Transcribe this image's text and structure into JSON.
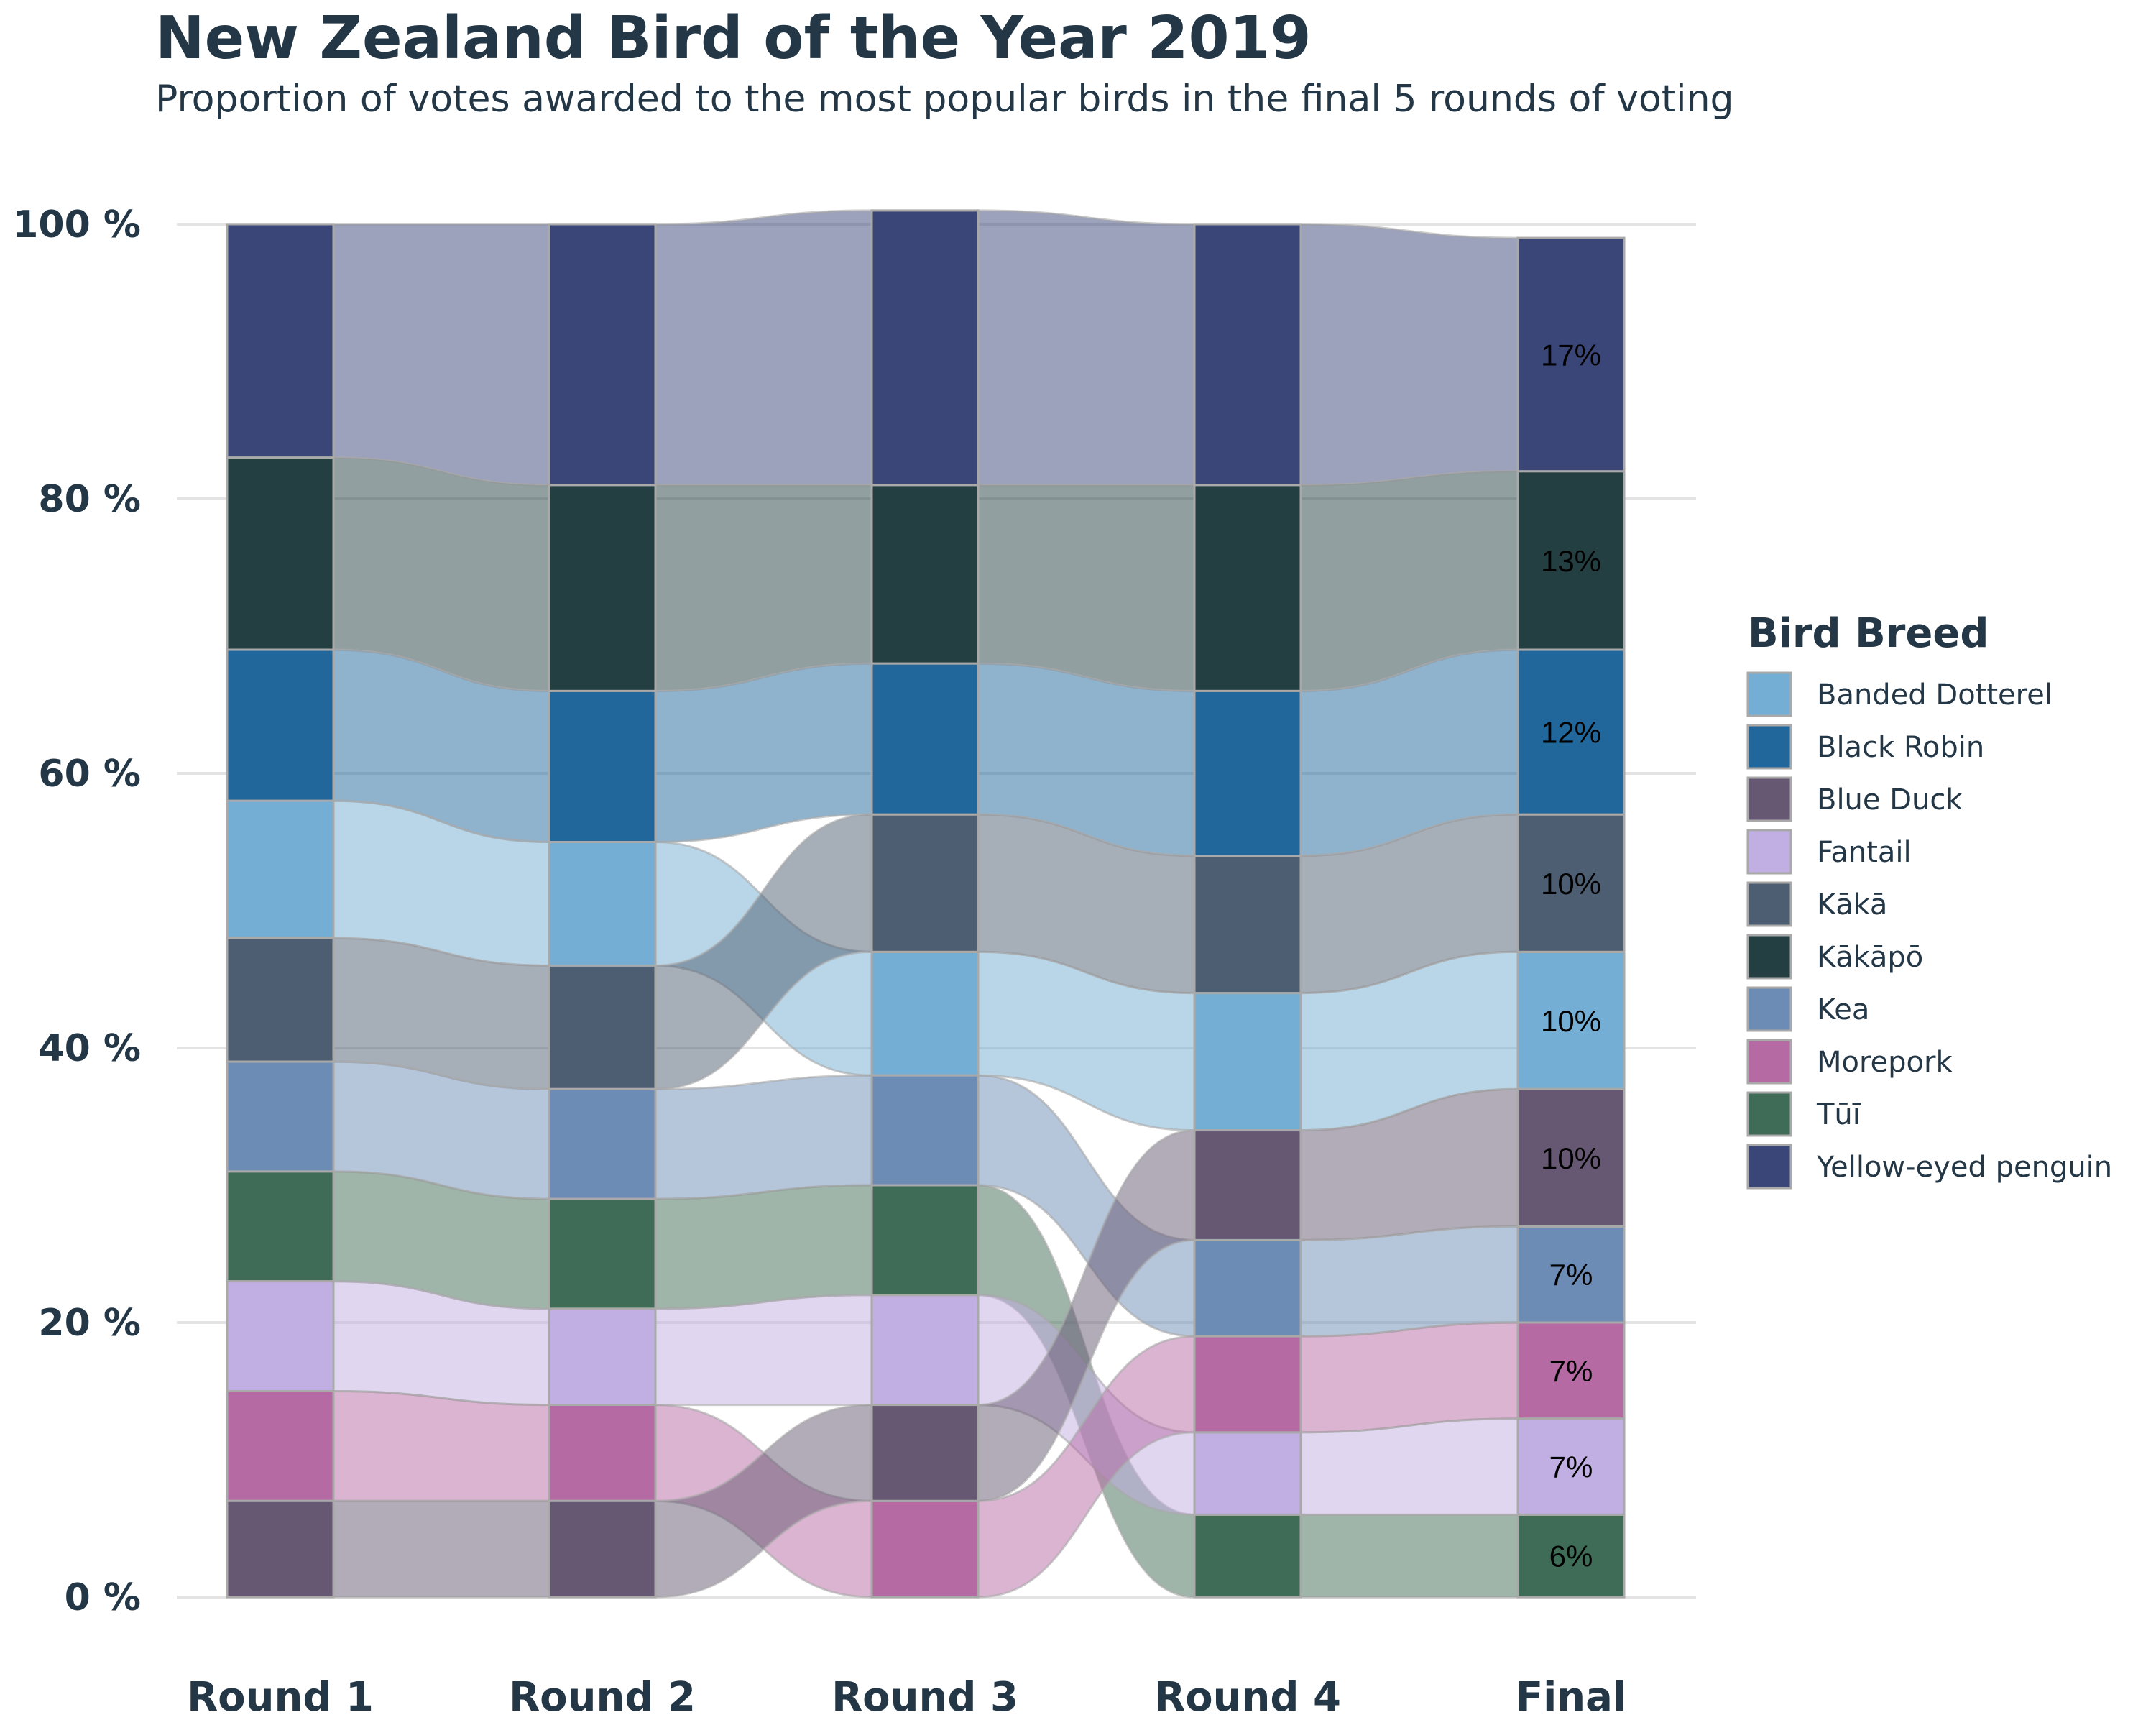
{
  "title": "New Zealand Bird of the Year 2019",
  "subtitle": "Proportion of votes awarded to the most popular birds in the final 5 rounds of voting",
  "chart_data": {
    "type": "alluvial",
    "categories": [
      "Round 1",
      "Round 2",
      "Round 3",
      "Round 4",
      "Final"
    ],
    "y_ticks": [
      "0 %",
      "20 %",
      "40 %",
      "60 %",
      "80 %",
      "100 %"
    ],
    "ylim": [
      0,
      100
    ],
    "grid": true,
    "legend": {
      "title": "Bird Breed",
      "position": "right",
      "entries": [
        {
          "name": "Banded Dotterel",
          "color": "#74AED4"
        },
        {
          "name": "Black Robin",
          "color": "#22679B"
        },
        {
          "name": "Blue Duck",
          "color": "#665872"
        },
        {
          "name": "Fantail",
          "color": "#C1AEE2"
        },
        {
          "name": "Kākā",
          "color": "#4E5E72"
        },
        {
          "name": "Kākāpō",
          "color": "#243F41"
        },
        {
          "name": "Kea",
          "color": "#6C8CB6"
        },
        {
          "name": "Morepork",
          "color": "#B56AA4"
        },
        {
          "name": "Tūī",
          "color": "#3F6C56"
        },
        {
          "name": "Yellow-eyed penguin",
          "color": "#3A4677"
        }
      ]
    },
    "series": [
      {
        "name": "Yellow-eyed penguin",
        "color": "#3A4677",
        "values": [
          17,
          19,
          20,
          19,
          17
        ],
        "stack_order": [
          1,
          1,
          1,
          1,
          1
        ]
      },
      {
        "name": "Kākāpō",
        "color": "#243F41",
        "values": [
          14,
          15,
          13,
          15,
          13
        ],
        "stack_order": [
          2,
          2,
          2,
          2,
          2
        ]
      },
      {
        "name": "Black Robin",
        "color": "#22679B",
        "values": [
          11,
          11,
          11,
          12,
          12
        ],
        "stack_order": [
          3,
          3,
          3,
          3,
          3
        ]
      },
      {
        "name": "Banded Dotterel",
        "color": "#74AED4",
        "values": [
          10,
          9,
          9,
          10,
          10
        ],
        "stack_order": [
          4,
          4,
          5,
          5,
          5
        ]
      },
      {
        "name": "Kākā",
        "color": "#4E5E72",
        "values": [
          9,
          9,
          10,
          10,
          10
        ],
        "stack_order": [
          5,
          5,
          4,
          4,
          4
        ]
      },
      {
        "name": "Kea",
        "color": "#6C8CB6",
        "values": [
          8,
          8,
          8,
          7,
          7
        ],
        "stack_order": [
          6,
          6,
          6,
          7,
          7
        ]
      },
      {
        "name": "Tūī",
        "color": "#3F6C56",
        "values": [
          8,
          8,
          8,
          6,
          6
        ],
        "stack_order": [
          7,
          7,
          7,
          10,
          10
        ]
      },
      {
        "name": "Fantail",
        "color": "#C1AEE2",
        "values": [
          8,
          7,
          8,
          6,
          7
        ],
        "stack_order": [
          8,
          8,
          8,
          9,
          9
        ]
      },
      {
        "name": "Morepork",
        "color": "#B56AA4",
        "values": [
          8,
          7,
          7,
          7,
          7
        ],
        "stack_order": [
          9,
          9,
          10,
          8,
          8
        ]
      },
      {
        "name": "Blue Duck",
        "color": "#665872",
        "values": [
          7,
          7,
          7,
          8,
          10
        ],
        "stack_order": [
          10,
          10,
          9,
          6,
          6
        ]
      }
    ],
    "data_labels": [
      "17%",
      "13%",
      "12%",
      "10%",
      "10%",
      "10%",
      "7%",
      "7%",
      "7%",
      "6%"
    ]
  }
}
